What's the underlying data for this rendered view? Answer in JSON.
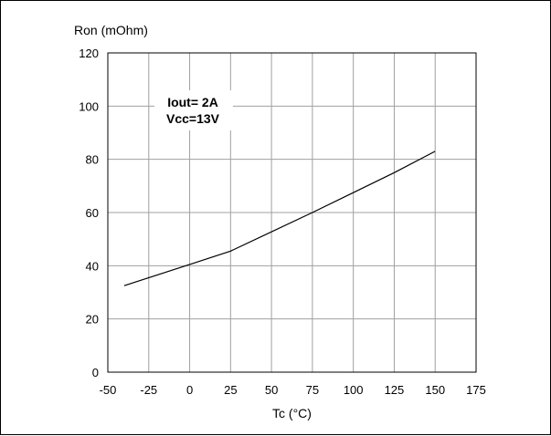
{
  "chart_data": {
    "type": "line",
    "title": "",
    "xlabel": "Tc (°C)",
    "ylabel": "Ron (mOhm)",
    "xlim": [
      -50,
      175
    ],
    "ylim": [
      0,
      120
    ],
    "x_ticks": [
      -50,
      -25,
      0,
      25,
      50,
      75,
      100,
      125,
      150,
      175
    ],
    "y_ticks": [
      0,
      20,
      40,
      60,
      80,
      100,
      120
    ],
    "grid": true,
    "legend": "none",
    "series": [
      {
        "x": [
          -40,
          0,
          25,
          75,
          125,
          150
        ],
        "y": [
          32.5,
          40.5,
          45.5,
          60,
          75,
          83
        ],
        "color": "#000000"
      }
    ],
    "annotations": [
      {
        "text": "Iout= 2A"
      },
      {
        "text": "Vcc=13V"
      }
    ]
  }
}
